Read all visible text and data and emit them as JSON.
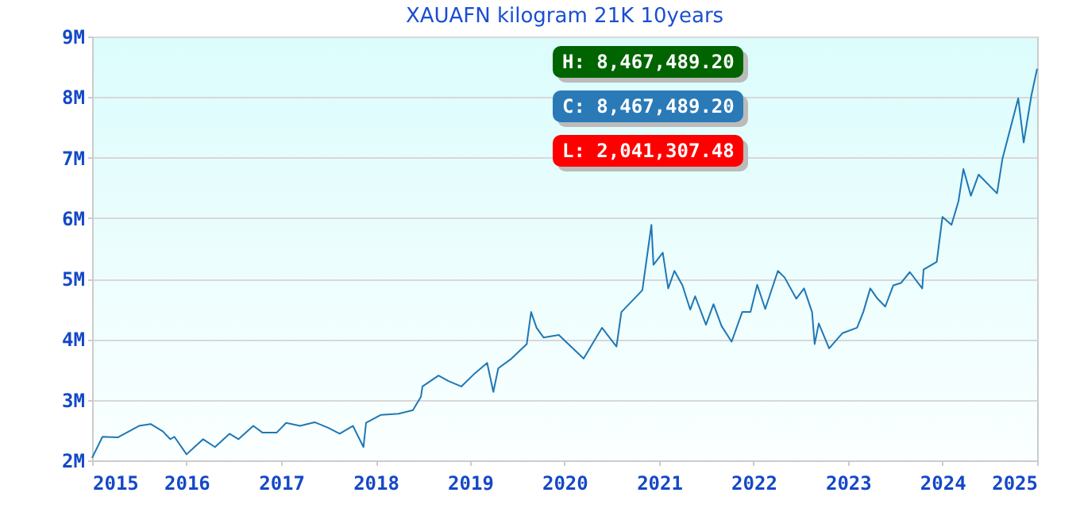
{
  "chart_data": {
    "type": "line",
    "title": "XAUAFN kilogram 21K 10years",
    "x": [
      "2015-01-01",
      "2015-02-10",
      "2015-04-10",
      "2015-07-01",
      "2015-08-15",
      "2015-10-01",
      "2015-10-30",
      "2015-11-15",
      "2016-01-01",
      "2016-03-05",
      "2016-04-20",
      "2016-06-15",
      "2016-07-20",
      "2016-09-15",
      "2016-10-20",
      "2016-12-15",
      "2017-01-20",
      "2017-03-15",
      "2017-05-10",
      "2017-07-01",
      "2017-08-15",
      "2017-10-05",
      "2017-11-15",
      "2017-11-25",
      "2018-01-20",
      "2018-03-30",
      "2018-05-25",
      "2018-06-25",
      "2018-07-01",
      "2018-09-01",
      "2018-10-10",
      "2018-11-28",
      "2019-01-20",
      "2019-03-08",
      "2019-04-01",
      "2019-04-20",
      "2019-06-10",
      "2019-08-08",
      "2019-08-25",
      "2019-09-15",
      "2019-10-12",
      "2019-12-10",
      "2020-03-15",
      "2020-05-25",
      "2020-07-20",
      "2020-08-08",
      "2020-10-28",
      "2020-12-02",
      "2020-12-10",
      "2021-01-15",
      "2021-02-05",
      "2021-03-01",
      "2021-04-01",
      "2021-05-01",
      "2021-05-20",
      "2021-07-01",
      "2021-07-30",
      "2021-08-30",
      "2021-10-08",
      "2021-11-18",
      "2021-12-20",
      "2022-01-15",
      "2022-02-15",
      "2022-04-05",
      "2022-05-01",
      "2022-06-15",
      "2022-07-15",
      "2022-08-15",
      "2022-08-25",
      "2022-09-10",
      "2022-10-20",
      "2022-12-10",
      "2023-02-05",
      "2023-03-01",
      "2023-03-28",
      "2023-04-25",
      "2023-05-25",
      "2023-06-25",
      "2023-07-25",
      "2023-08-28",
      "2023-10-15",
      "2023-10-20",
      "2023-12-10",
      "2024-01-01",
      "2024-02-05",
      "2024-03-03",
      "2024-03-22",
      "2024-04-20",
      "2024-05-20",
      "2024-07-30",
      "2024-08-20",
      "2024-10-20",
      "2024-11-10",
      "2024-12-10",
      "2025-01-01"
    ],
    "series": [
      {
        "color": "#1f77b4",
        "values": [
          2041307.48,
          2390000,
          2380000,
          2570000,
          2600000,
          2480000,
          2350000,
          2390000,
          2100000,
          2350000,
          2220000,
          2440000,
          2350000,
          2570000,
          2460000,
          2460000,
          2620000,
          2570000,
          2630000,
          2540000,
          2440000,
          2570000,
          2220000,
          2620000,
          2750000,
          2770000,
          2830000,
          3050000,
          3220000,
          3400000,
          3310000,
          3220000,
          3440000,
          3610000,
          3130000,
          3520000,
          3680000,
          3920000,
          4450000,
          4190000,
          4030000,
          4070000,
          3680000,
          4190000,
          3880000,
          4450000,
          4810000,
          5890000,
          5230000,
          5430000,
          4840000,
          5130000,
          4890000,
          4490000,
          4710000,
          4240000,
          4580000,
          4220000,
          3960000,
          4450000,
          4450000,
          4900000,
          4500000,
          5130000,
          5020000,
          4670000,
          4840000,
          4450000,
          3920000,
          4260000,
          3850000,
          4100000,
          4190000,
          4450000,
          4840000,
          4670000,
          4540000,
          4890000,
          4930000,
          5110000,
          4840000,
          5150000,
          5280000,
          6020000,
          5890000,
          6280000,
          6810000,
          6370000,
          6720000,
          6410000,
          6980000,
          7980000,
          7250000,
          8030000,
          8467489.2
        ]
      }
    ],
    "xlim": [
      "2015-01-01",
      "2025-01-01"
    ],
    "xticks": [
      {
        "value": "2015-01-01",
        "label": "2015"
      },
      {
        "value": "2016-01-01",
        "label": "2016"
      },
      {
        "value": "2017-01-01",
        "label": "2017"
      },
      {
        "value": "2018-01-01",
        "label": "2018"
      },
      {
        "value": "2019-01-01",
        "label": "2019"
      },
      {
        "value": "2020-01-01",
        "label": "2020"
      },
      {
        "value": "2021-01-01",
        "label": "2021"
      },
      {
        "value": "2022-01-01",
        "label": "2022"
      },
      {
        "value": "2023-01-01",
        "label": "2023"
      },
      {
        "value": "2024-01-01",
        "label": "2024"
      },
      {
        "value": "2025-01-01",
        "label": "2025"
      }
    ],
    "ylim": [
      2000000,
      9000000
    ],
    "yticks": [
      {
        "value": 2000000,
        "label": "2M"
      },
      {
        "value": 3000000,
        "label": "3M"
      },
      {
        "value": 4000000,
        "label": "4M"
      },
      {
        "value": 5000000,
        "label": "5M"
      },
      {
        "value": 6000000,
        "label": "6M"
      },
      {
        "value": 7000000,
        "label": "7M"
      },
      {
        "value": 8000000,
        "label": "8M"
      },
      {
        "value": 9000000,
        "label": "9M"
      }
    ],
    "grid": "y",
    "annotations": [
      "H: 8,467,489.20",
      "C: 8,467,489.20",
      "L: 2,041,307.48"
    ]
  }
}
